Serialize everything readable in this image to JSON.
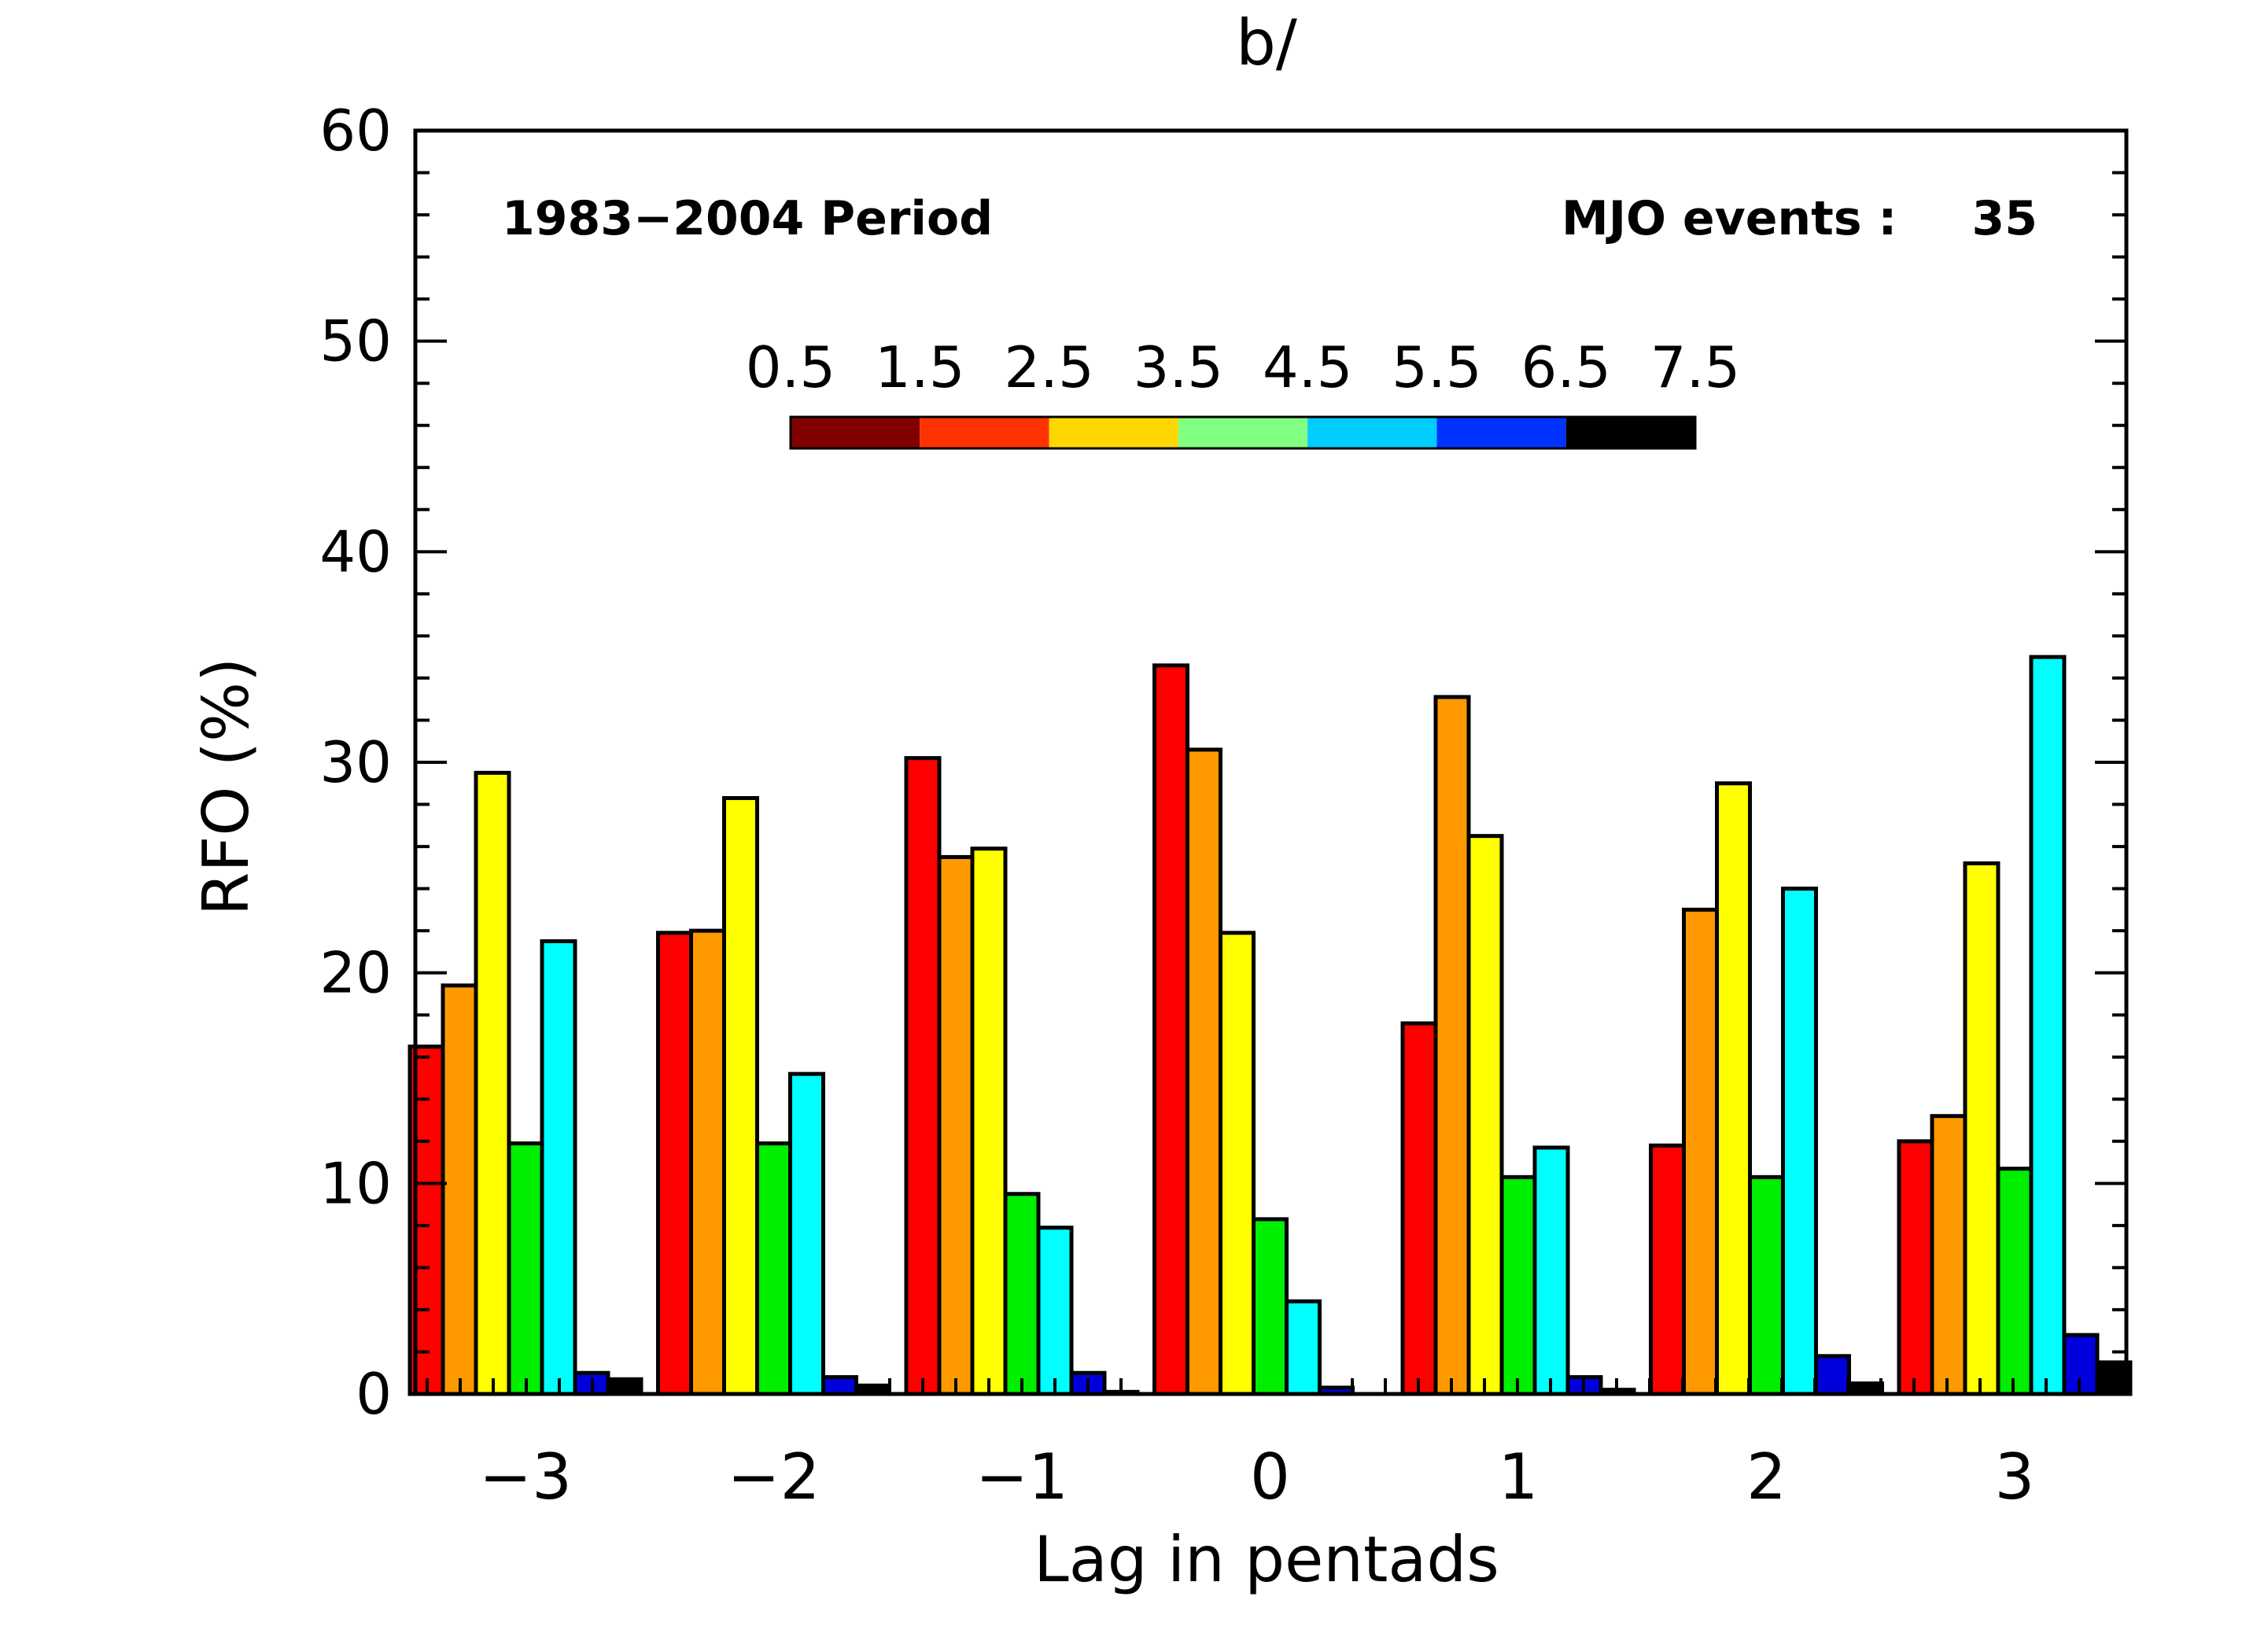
{
  "chart_data": {
    "type": "bar",
    "title": "b/",
    "xlabel": "Lag in pentads",
    "ylabel": "RFO (%)",
    "ylim": [
      0,
      60
    ],
    "yticks": [
      "0",
      "10",
      "20",
      "30",
      "40",
      "50",
      "60"
    ],
    "categories": [
      "−3",
      "−2",
      "−1",
      "0",
      "1",
      "2",
      "3"
    ],
    "annotations": {
      "period": "1983−2004 Period",
      "events_label": "MJO events :",
      "events_count": "35"
    },
    "legend": {
      "placement": "top-center colorbar",
      "labels": [
        "0.5",
        "1.5",
        "2.5",
        "3.5",
        "4.5",
        "5.5",
        "6.5",
        "7.5"
      ],
      "colors": [
        "#800000",
        "#ff3300",
        "#ffd700",
        "#80ff80",
        "#00ccff",
        "#0033ff",
        "#000000"
      ]
    },
    "series_colors": [
      "#ff0000",
      "#ff9900",
      "#ffff00",
      "#00ee00",
      "#00ffff",
      "#0000dd",
      "#000000"
    ],
    "series": [
      {
        "values": [
          16.5,
          21.9,
          30.2,
          34.6,
          17.6,
          11.8,
          12.0
        ]
      },
      {
        "values": [
          19.4,
          22.0,
          25.5,
          30.6,
          33.1,
          23.0,
          13.2
        ]
      },
      {
        "values": [
          29.5,
          28.3,
          25.9,
          21.9,
          26.5,
          29.0,
          25.2
        ]
      },
      {
        "values": [
          11.9,
          11.9,
          9.5,
          8.3,
          10.3,
          10.3,
          10.7
        ]
      },
      {
        "values": [
          21.5,
          15.2,
          7.9,
          4.4,
          11.7,
          24.0,
          35.0
        ]
      },
      {
        "values": [
          1.0,
          0.8,
          1.0,
          0.3,
          0.8,
          1.8,
          2.8
        ]
      },
      {
        "values": [
          0.7,
          0.4,
          0.1,
          0.0,
          0.2,
          0.5,
          1.5
        ]
      }
    ]
  }
}
